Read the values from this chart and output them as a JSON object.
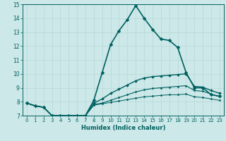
{
  "xlabel": "Humidex (Indice chaleur)",
  "ylabel": "",
  "xlim": [
    -0.5,
    23.5
  ],
  "ylim": [
    7,
    15
  ],
  "xticks": [
    0,
    1,
    2,
    3,
    4,
    5,
    6,
    7,
    8,
    9,
    10,
    11,
    12,
    13,
    14,
    15,
    16,
    17,
    18,
    19,
    20,
    21,
    22,
    23
  ],
  "yticks": [
    7,
    8,
    9,
    10,
    11,
    12,
    13,
    14,
    15
  ],
  "bg_color": "#cce8e8",
  "grid_color": "#b8d8d8",
  "line_color": "#006060",
  "series": [
    {
      "x": [
        0,
        1,
        2,
        3,
        4,
        5,
        6,
        7,
        8,
        9,
        10,
        11,
        12,
        13,
        14,
        15,
        16,
        17,
        18,
        19,
        20,
        21,
        22,
        23
      ],
      "y": [
        7.9,
        7.7,
        7.6,
        7.0,
        7.0,
        7.0,
        7.0,
        7.0,
        8.1,
        10.1,
        12.1,
        13.1,
        13.9,
        14.9,
        14.0,
        13.2,
        12.5,
        12.4,
        11.9,
        10.1,
        9.0,
        9.0,
        8.5,
        8.4
      ],
      "marker": "D",
      "markersize": 2.5,
      "linewidth": 1.2
    },
    {
      "x": [
        0,
        1,
        2,
        3,
        4,
        5,
        6,
        7,
        8,
        9,
        10,
        11,
        12,
        13,
        14,
        15,
        16,
        17,
        18,
        19,
        20,
        21,
        22,
        23
      ],
      "y": [
        7.9,
        7.7,
        7.6,
        7.0,
        7.0,
        7.0,
        7.0,
        7.0,
        7.9,
        8.2,
        8.6,
        8.9,
        9.2,
        9.5,
        9.7,
        9.8,
        9.85,
        9.9,
        9.95,
        10.0,
        9.1,
        9.05,
        8.8,
        8.6
      ],
      "marker": "D",
      "markersize": 2.0,
      "linewidth": 1.0
    },
    {
      "x": [
        0,
        1,
        2,
        3,
        4,
        5,
        6,
        7,
        8,
        9,
        10,
        11,
        12,
        13,
        14,
        15,
        16,
        17,
        18,
        19,
        20,
        21,
        22,
        23
      ],
      "y": [
        7.9,
        7.7,
        7.6,
        7.0,
        7.0,
        7.0,
        7.0,
        7.0,
        7.8,
        7.9,
        8.1,
        8.3,
        8.5,
        8.7,
        8.85,
        8.95,
        9.0,
        9.05,
        9.1,
        9.15,
        8.8,
        8.75,
        8.55,
        8.35
      ],
      "marker": "D",
      "markersize": 1.5,
      "linewidth": 0.8
    },
    {
      "x": [
        0,
        1,
        2,
        3,
        4,
        5,
        6,
        7,
        8,
        9,
        10,
        11,
        12,
        13,
        14,
        15,
        16,
        17,
        18,
        19,
        20,
        21,
        22,
        23
      ],
      "y": [
        7.9,
        7.7,
        7.6,
        7.0,
        7.0,
        7.0,
        7.0,
        7.0,
        7.75,
        7.85,
        7.95,
        8.05,
        8.15,
        8.25,
        8.35,
        8.4,
        8.45,
        8.5,
        8.5,
        8.55,
        8.35,
        8.3,
        8.2,
        8.1
      ],
      "marker": "D",
      "markersize": 1.5,
      "linewidth": 0.7
    }
  ]
}
